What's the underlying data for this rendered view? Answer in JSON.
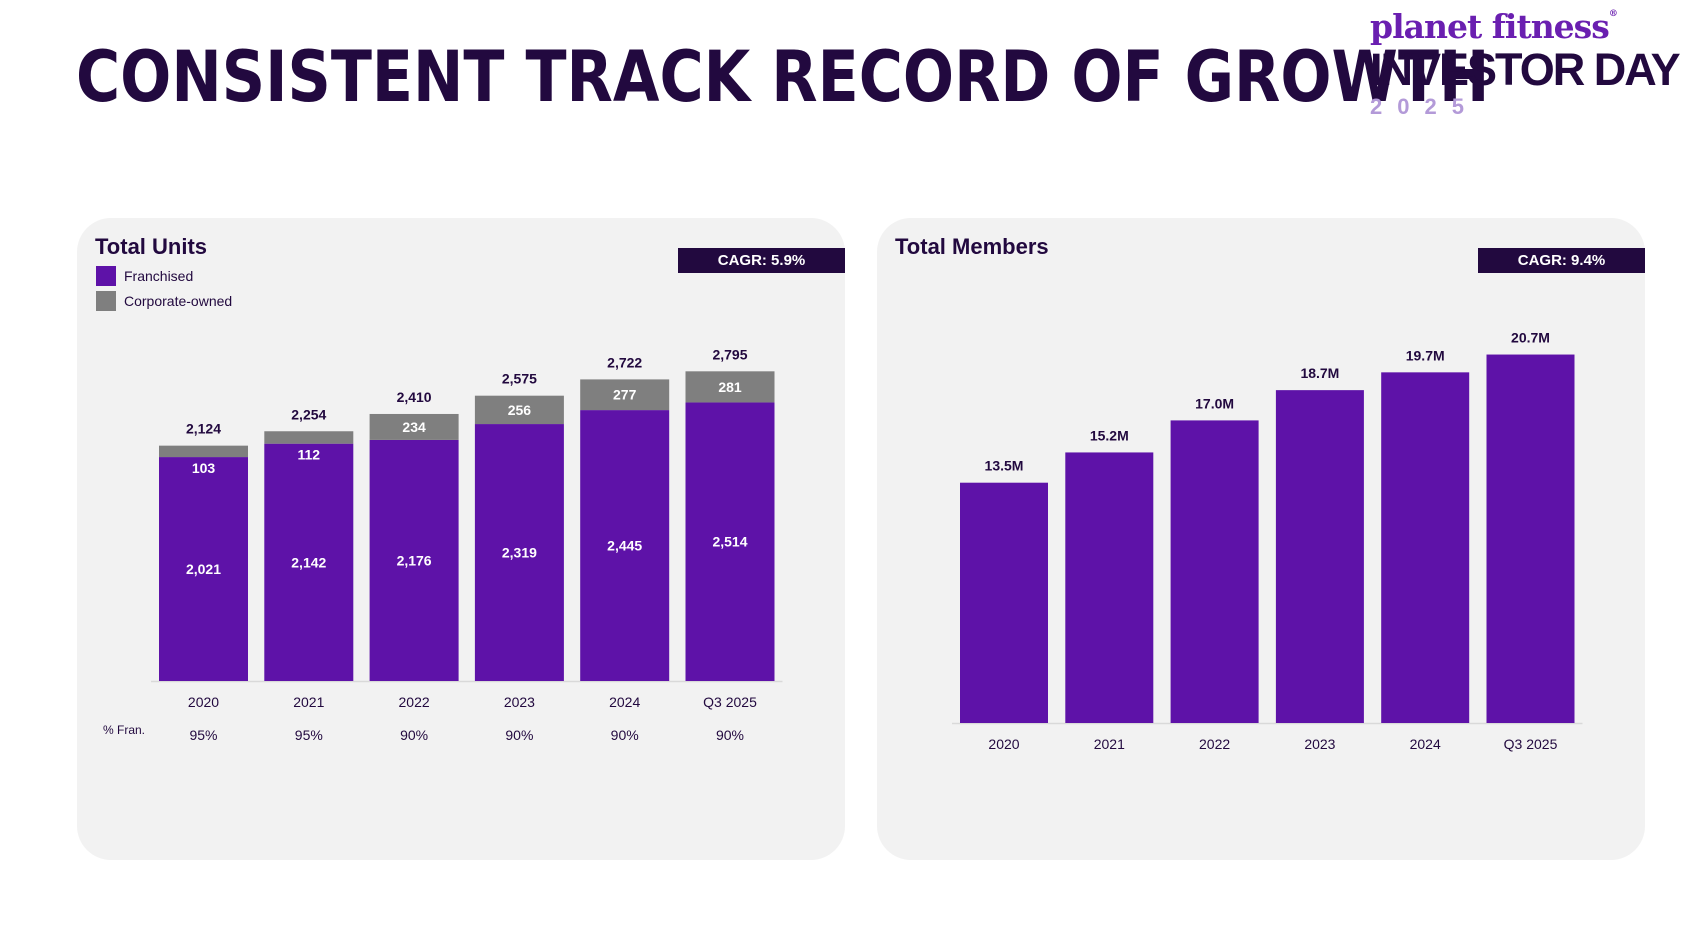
{
  "page": {
    "title": "CONSISTENT TRACK RECORD OF GROWTH"
  },
  "logo": {
    "brand": "planet fitness",
    "registered": "®",
    "event": "INVESTOR DAY",
    "year": "2025"
  },
  "colors": {
    "franchised": "#5e12a8",
    "corporate": "#7f7f7f",
    "dark": "#22093f",
    "panel": "#f2f2f2"
  },
  "units_panel": {
    "title": "Total Units",
    "cagr": "CAGR: 5.9%",
    "legend": [
      {
        "label": "Franchised",
        "color": "#5e12a8"
      },
      {
        "label": "Corporate-owned",
        "color": "#7f7f7f"
      }
    ],
    "pct_label": "% Fran."
  },
  "members_panel": {
    "title": "Total Members",
    "cagr": "CAGR: 9.4%"
  },
  "chart_data": [
    {
      "type": "bar",
      "stacked": true,
      "title": "Total Units",
      "categories": [
        "2020",
        "2021",
        "2022",
        "2023",
        "2024",
        "Q3 2025"
      ],
      "series": [
        {
          "name": "Franchised",
          "values": [
            2021,
            2142,
            2176,
            2319,
            2445,
            2514
          ],
          "labels": [
            "2,021",
            "2,142",
            "2,176",
            "2,319",
            "2,445",
            "2,514"
          ]
        },
        {
          "name": "Corporate-owned",
          "values": [
            103,
            112,
            234,
            256,
            277,
            281
          ],
          "labels": [
            "103",
            "112",
            "234",
            "256",
            "277",
            "281"
          ]
        }
      ],
      "totals": [
        "2,124",
        "2,254",
        "2,410",
        "2,575",
        "2,722",
        "2,795"
      ],
      "pct_franchised": [
        "95%",
        "95%",
        "90%",
        "90%",
        "90%",
        "90%"
      ],
      "ylim": [
        0,
        3200
      ],
      "grid": false
    },
    {
      "type": "bar",
      "title": "Total Members",
      "categories": [
        "2020",
        "2021",
        "2022",
        "2023",
        "2024",
        "Q3 2025"
      ],
      "values": [
        13.5,
        15.2,
        17.0,
        18.7,
        19.7,
        20.7
      ],
      "labels": [
        "13.5M",
        "15.2M",
        "17.0M",
        "18.7M",
        "19.7M",
        "20.7M"
      ],
      "ylim": [
        0,
        23.2
      ],
      "grid": false
    }
  ]
}
